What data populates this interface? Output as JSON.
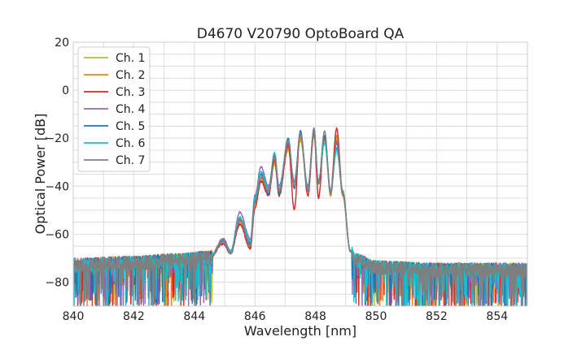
{
  "chart_data": {
    "type": "line",
    "title": "D4670 V20790 OptoBoard QA",
    "xlabel": "Wavelength [nm]",
    "ylabel": "Optical Power [dB]",
    "xlim": [
      840,
      855
    ],
    "ylim": [
      -90,
      20
    ],
    "xticks": [
      840,
      842,
      844,
      846,
      848,
      850,
      852,
      854
    ],
    "yticks": [
      -80,
      -60,
      -40,
      -20,
      0,
      20
    ],
    "xtick_labels": [
      "840",
      "842",
      "844",
      "846",
      "848",
      "850",
      "852",
      "854"
    ],
    "ytick_labels": [
      "−80",
      "−60",
      "−40",
      "−20",
      "0",
      "20"
    ],
    "grid": true,
    "legend_position": "top-left",
    "series": [
      {
        "name": "Ch. 1",
        "color": "#bcbd22",
        "x": [
          840.0,
          842.0,
          843.5,
          844.5,
          844.95,
          845.2,
          845.5,
          845.85,
          846.0,
          846.2,
          846.45,
          846.65,
          846.8,
          847.1,
          847.3,
          847.5,
          847.75,
          847.95,
          848.1,
          848.3,
          848.5,
          848.7,
          848.9,
          849.15,
          849.3,
          850.0,
          852.0,
          854.0,
          855.0
        ],
        "y": [
          -73,
          -72,
          -71,
          -70,
          -62,
          -67,
          -56,
          -64,
          -48,
          -38,
          -41,
          -31,
          -41,
          -25,
          -39,
          -21,
          -40,
          -19,
          -38,
          -21,
          -43,
          -20,
          -43,
          -67,
          -71,
          -74,
          -75,
          -75,
          -75
        ]
      },
      {
        "name": "Ch. 2",
        "color": "#ff7f0e",
        "x": [
          840.0,
          842.0,
          843.5,
          844.5,
          844.95,
          845.2,
          845.5,
          845.85,
          846.0,
          846.2,
          846.45,
          846.65,
          846.8,
          847.1,
          847.3,
          847.5,
          847.75,
          847.95,
          848.1,
          848.3,
          848.5,
          848.7,
          848.9,
          849.15,
          849.3,
          850.0,
          852.0,
          854.0,
          855.0
        ],
        "y": [
          -73,
          -72,
          -71,
          -70,
          -63,
          -68,
          -55,
          -64,
          -47,
          -37,
          -42,
          -30,
          -42,
          -24,
          -40,
          -20,
          -41,
          -18,
          -39,
          -20,
          -44,
          -19,
          -44,
          -67,
          -71,
          -74,
          -75,
          -75,
          -75
        ]
      },
      {
        "name": "Ch. 3",
        "color": "#d62728",
        "x": [
          840.0,
          842.0,
          843.5,
          844.5,
          844.95,
          845.2,
          845.5,
          845.85,
          846.0,
          846.2,
          846.45,
          846.65,
          846.8,
          847.1,
          847.3,
          847.5,
          847.75,
          847.95,
          848.1,
          848.3,
          848.5,
          848.7,
          848.9,
          849.15,
          849.3,
          850.0,
          852.0,
          854.0,
          855.0
        ],
        "y": [
          -73,
          -72,
          -71,
          -70,
          -64,
          -68,
          -56,
          -66,
          -49,
          -38,
          -44,
          -29,
          -44,
          -23,
          -50,
          -17,
          -44,
          -18,
          -45,
          -19,
          -42,
          -16,
          -42,
          -67,
          -71,
          -74,
          -75,
          -75,
          -75
        ]
      },
      {
        "name": "Ch. 4",
        "color": "#9467bd",
        "x": [
          840.0,
          842.0,
          843.5,
          844.5,
          844.95,
          845.2,
          845.5,
          845.85,
          846.0,
          846.2,
          846.45,
          846.65,
          846.8,
          847.1,
          847.3,
          847.5,
          847.75,
          847.95,
          848.1,
          848.3,
          848.5,
          848.7,
          848.9,
          849.15,
          849.3,
          850.0,
          852.0,
          854.0,
          855.0
        ],
        "y": [
          -73,
          -72,
          -71,
          -70,
          -62,
          -67,
          -51,
          -62,
          -44,
          -32,
          -40,
          -28,
          -40,
          -22,
          -38,
          -19,
          -40,
          -17,
          -38,
          -20,
          -42,
          -24,
          -42,
          -67,
          -71,
          -74,
          -75,
          -75,
          -75
        ]
      },
      {
        "name": "Ch. 5",
        "color": "#1f77b4",
        "x": [
          840.0,
          842.0,
          843.5,
          844.5,
          844.95,
          845.2,
          845.5,
          845.85,
          846.0,
          846.2,
          846.45,
          846.65,
          846.8,
          847.1,
          847.3,
          847.5,
          847.75,
          847.95,
          848.1,
          848.3,
          848.5,
          848.7,
          848.9,
          849.15,
          849.3,
          850.0,
          852.0,
          854.0,
          855.0
        ],
        "y": [
          -73,
          -72,
          -71,
          -70,
          -63,
          -68,
          -54,
          -64,
          -46,
          -35,
          -43,
          -27,
          -43,
          -20,
          -41,
          -17,
          -42,
          -16,
          -39,
          -19,
          -43,
          -22,
          -43,
          -67,
          -71,
          -74,
          -75,
          -75,
          -75
        ]
      },
      {
        "name": "Ch. 6",
        "color": "#17becf",
        "x": [
          840.0,
          842.0,
          843.5,
          844.5,
          844.95,
          845.2,
          845.5,
          845.85,
          846.0,
          846.2,
          846.45,
          846.65,
          846.8,
          847.1,
          847.3,
          847.5,
          847.75,
          847.95,
          848.1,
          848.3,
          848.5,
          848.7,
          848.9,
          849.15,
          849.3,
          850.0,
          852.0,
          854.0,
          855.0
        ],
        "y": [
          -73,
          -72,
          -71,
          -70,
          -63,
          -67,
          -53,
          -63,
          -45,
          -34,
          -41,
          -26,
          -41,
          -21,
          -40,
          -18,
          -41,
          -17,
          -38,
          -22,
          -42,
          -25,
          -42,
          -67,
          -71,
          -74,
          -75,
          -75,
          -75
        ]
      },
      {
        "name": "Ch. 7",
        "color": "#7f7f7f",
        "x": [
          840.0,
          842.0,
          843.5,
          844.5,
          844.95,
          845.2,
          845.5,
          845.85,
          846.0,
          846.2,
          846.45,
          846.65,
          846.8,
          847.1,
          847.3,
          847.5,
          847.75,
          847.95,
          848.1,
          848.3,
          848.5,
          848.7,
          848.9,
          849.15,
          849.3,
          850.0,
          852.0,
          854.0,
          855.0
        ],
        "y": [
          -73,
          -72,
          -71,
          -70,
          -63,
          -68,
          -54,
          -65,
          -47,
          -36,
          -42,
          -27,
          -42,
          -21,
          -40,
          -18,
          -42,
          -16,
          -39,
          -17,
          -43,
          -21,
          -43,
          -67,
          -71,
          -74,
          -75,
          -75,
          -75
        ]
      }
    ]
  }
}
